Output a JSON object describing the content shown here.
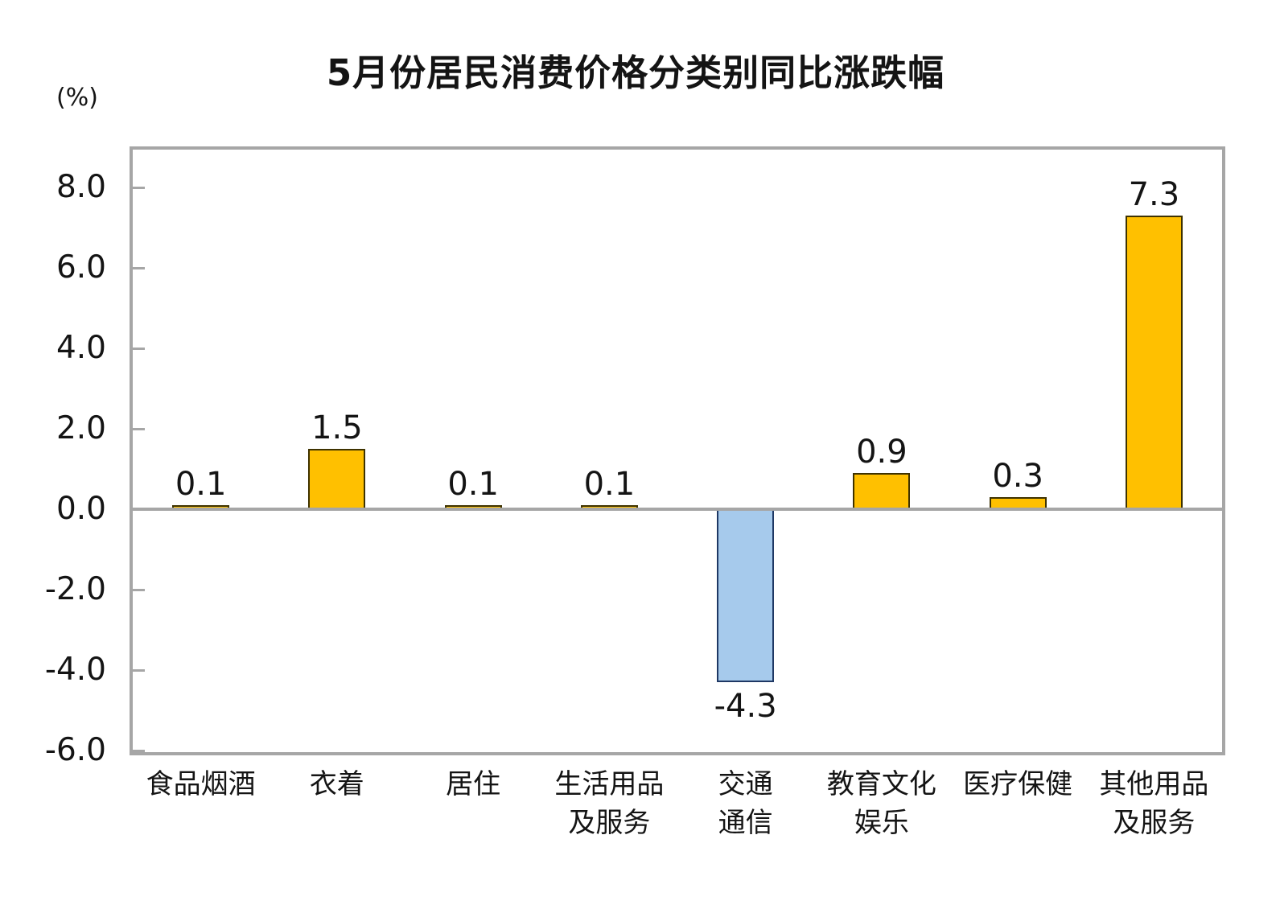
{
  "title": "5月份居民消费价格分类别同比涨跌幅",
  "unit_label": "(%)",
  "colors": {
    "positive_fill": "#FFC000",
    "positive_border": "#3E3200",
    "negative_fill": "#A6CAEC",
    "negative_border": "#1F3864",
    "axis": "#A6A6A6",
    "text": "#141414"
  },
  "chart_data": {
    "type": "bar",
    "title": "5月份居民消费价格分类别同比涨跌幅",
    "xlabel": "",
    "ylabel": "(%)",
    "categories": [
      "食品烟酒",
      "衣着",
      "居住",
      "生活用品\n及服务",
      "交通\n通信",
      "教育文化\n娱乐",
      "医疗保健",
      "其他用品\n及服务"
    ],
    "values": [
      0.1,
      1.5,
      0.1,
      0.1,
      -4.3,
      0.9,
      0.3,
      7.3
    ],
    "data_labels": [
      "0.1",
      "1.5",
      "0.1",
      "0.1",
      "-4.3",
      "0.9",
      "0.3",
      "7.3"
    ],
    "ylim": [
      -6.0,
      9.0
    ],
    "yticks": [
      8.0,
      6.0,
      4.0,
      2.0,
      0.0,
      -2.0,
      -4.0,
      -6.0
    ],
    "ytick_labels": [
      "8.0",
      "6.0",
      "4.0",
      "2.0",
      "0.0",
      "-2.0",
      "-4.0",
      "-6.0"
    ],
    "grid": false,
    "legend": "none"
  }
}
